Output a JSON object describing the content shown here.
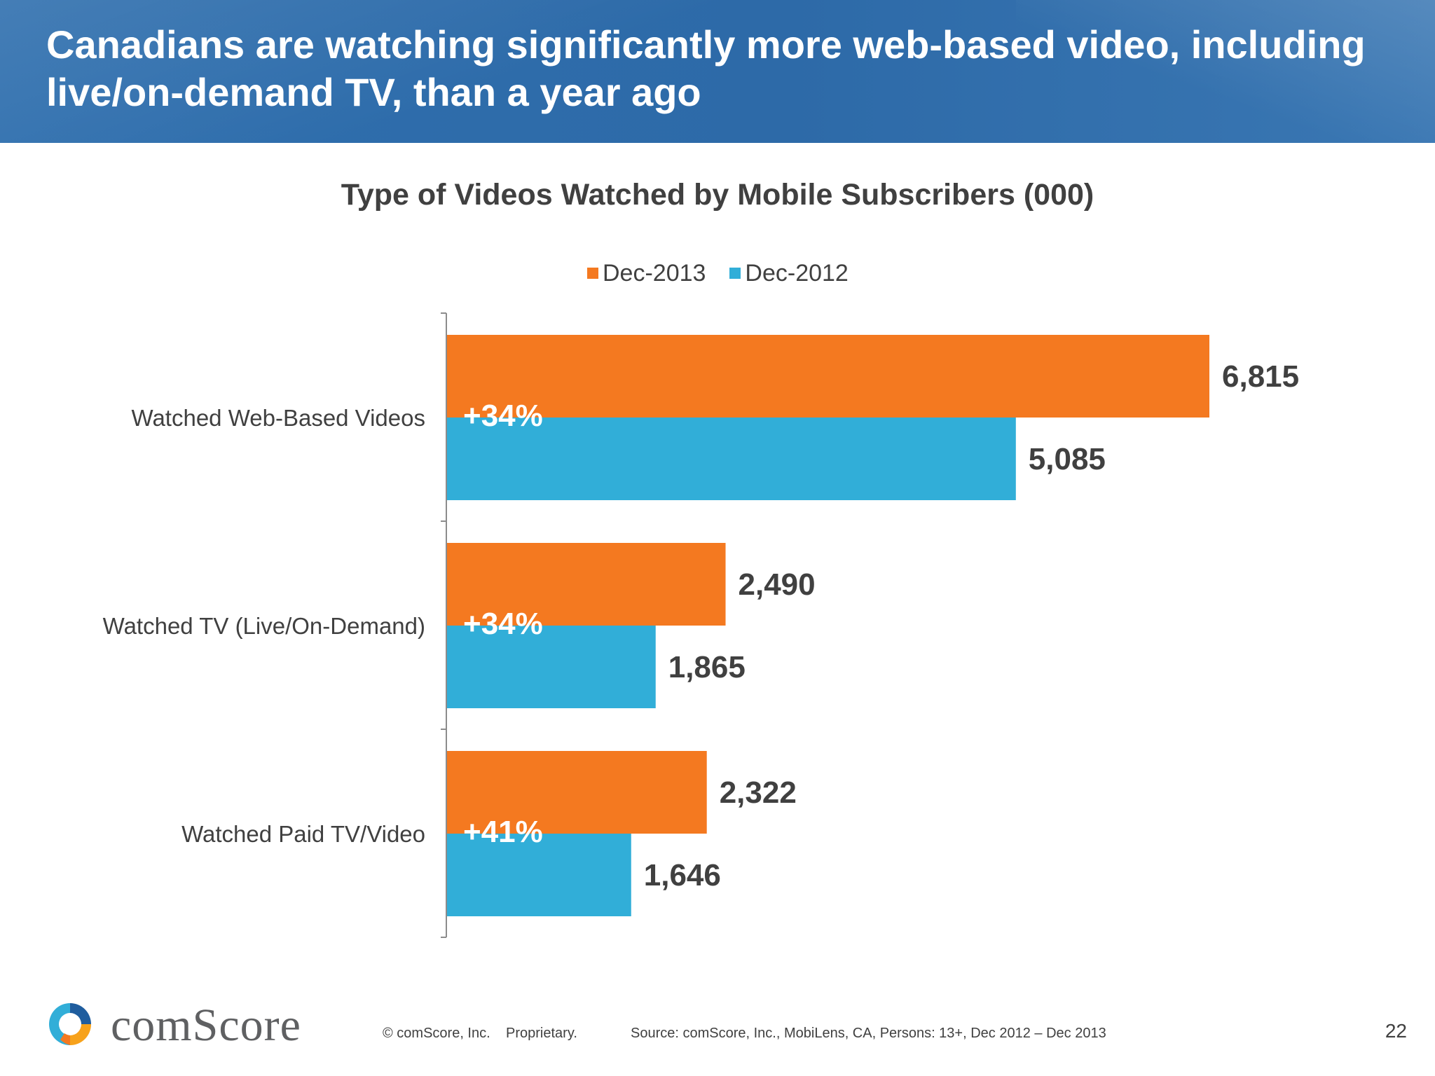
{
  "header": {
    "title": "Canadians are watching significantly more web-based video, including live/on-demand TV, than a year ago"
  },
  "colors": {
    "dec2013": "#f47920",
    "dec2012": "#31aed8",
    "text": "#404040",
    "header_bg": "#2f6fae"
  },
  "chart_data": {
    "type": "bar",
    "orientation": "horizontal",
    "title": "Type of Videos Watched by Mobile Subscribers (000)",
    "categories": [
      "Watched Web-Based Videos",
      "Watched TV (Live/On-Demand)",
      "Watched Paid TV/Video"
    ],
    "series": [
      {
        "name": "Dec-2013",
        "values": [
          6815,
          2490,
          2322
        ],
        "labels": [
          "6,815",
          "2,490",
          "2,322"
        ],
        "color": "#f47920"
      },
      {
        "name": "Dec-2012",
        "values": [
          5085,
          1865,
          1646
        ],
        "labels": [
          "5,085",
          "1,865",
          "1,646"
        ],
        "color": "#31aed8"
      }
    ],
    "annotations": [
      "+34%",
      "+34%",
      "+41%"
    ],
    "xlim": [
      0,
      6815
    ],
    "legend_position": "top",
    "grid": false
  },
  "footer": {
    "brand": "comScore",
    "copyright": "© comScore, Inc.",
    "proprietary": "Proprietary.",
    "source": "Source: comScore, Inc., MobiLens, CA, Persons: 13+, Dec 2012 – Dec 2013",
    "page_number": "22"
  }
}
